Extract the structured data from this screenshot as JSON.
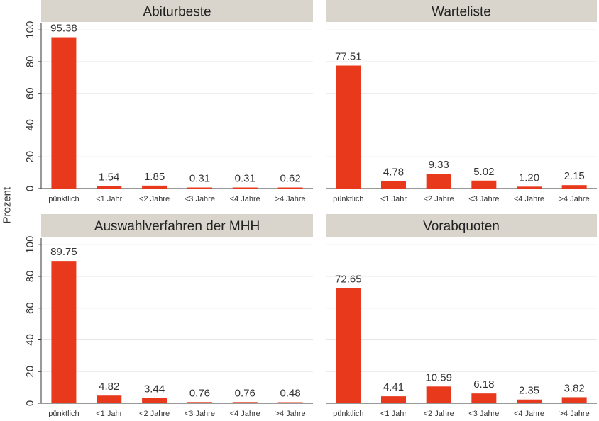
{
  "figure": {
    "ylabel": "Prozent",
    "bar_color": "#E8391D",
    "strip_color": "#D9D5CC",
    "grid_color": "#E6E6E6"
  },
  "chart_data": [
    {
      "type": "bar",
      "title": "Abiturbeste",
      "categories": [
        "pünktlich",
        "<1 Jahr",
        "<2 Jahre",
        "<3 Jahre",
        "<4 Jahre",
        ">4 Jahre"
      ],
      "values": [
        95.38,
        1.54,
        1.85,
        0.31,
        0.31,
        0.62
      ],
      "value_labels": [
        "95.38",
        "1.54",
        "1.85",
        "0.31",
        "0.31",
        "0.62"
      ],
      "ylabel": "Prozent",
      "yticks": [
        0,
        20,
        40,
        60,
        80,
        100
      ],
      "ylim": [
        0,
        105
      ],
      "grid": true
    },
    {
      "type": "bar",
      "title": "Warteliste",
      "categories": [
        "pünktlich",
        "<1 Jahr",
        "<2 Jahre",
        "<3 Jahre",
        "<4 Jahre",
        ">4 Jahre"
      ],
      "values": [
        77.51,
        4.78,
        9.33,
        5.02,
        1.2,
        2.15
      ],
      "value_labels": [
        "77.51",
        "4.78",
        "9.33",
        "5.02",
        "1.20",
        "2.15"
      ],
      "ylabel": "Prozent",
      "yticks": [
        0,
        20,
        40,
        60,
        80,
        100
      ],
      "ylim": [
        0,
        105
      ],
      "grid": true
    },
    {
      "type": "bar",
      "title": "Auswahlverfahren der MHH",
      "categories": [
        "pünktlich",
        "<1 Jahr",
        "<2 Jahre",
        "<3 Jahre",
        "<4 Jahre",
        ">4 Jahre"
      ],
      "values": [
        89.75,
        4.82,
        3.44,
        0.76,
        0.76,
        0.48
      ],
      "value_labels": [
        "89.75",
        "4.82",
        "3.44",
        "0.76",
        "0.76",
        "0.48"
      ],
      "ylabel": "Prozent",
      "yticks": [
        0,
        20,
        40,
        60,
        80,
        100
      ],
      "ylim": [
        0,
        105
      ],
      "grid": true
    },
    {
      "type": "bar",
      "title": "Vorabquoten",
      "categories": [
        "pünktlich",
        "<1 Jahr",
        "<2 Jahre",
        "<3 Jahre",
        "<4 Jahre",
        ">4 Jahre"
      ],
      "values": [
        72.65,
        4.41,
        10.59,
        6.18,
        2.35,
        3.82
      ],
      "value_labels": [
        "72.65",
        "4.41",
        "10.59",
        "6.18",
        "2.35",
        "3.82"
      ],
      "ylabel": "Prozent",
      "yticks": [
        0,
        20,
        40,
        60,
        80,
        100
      ],
      "ylim": [
        0,
        105
      ],
      "grid": true
    }
  ]
}
